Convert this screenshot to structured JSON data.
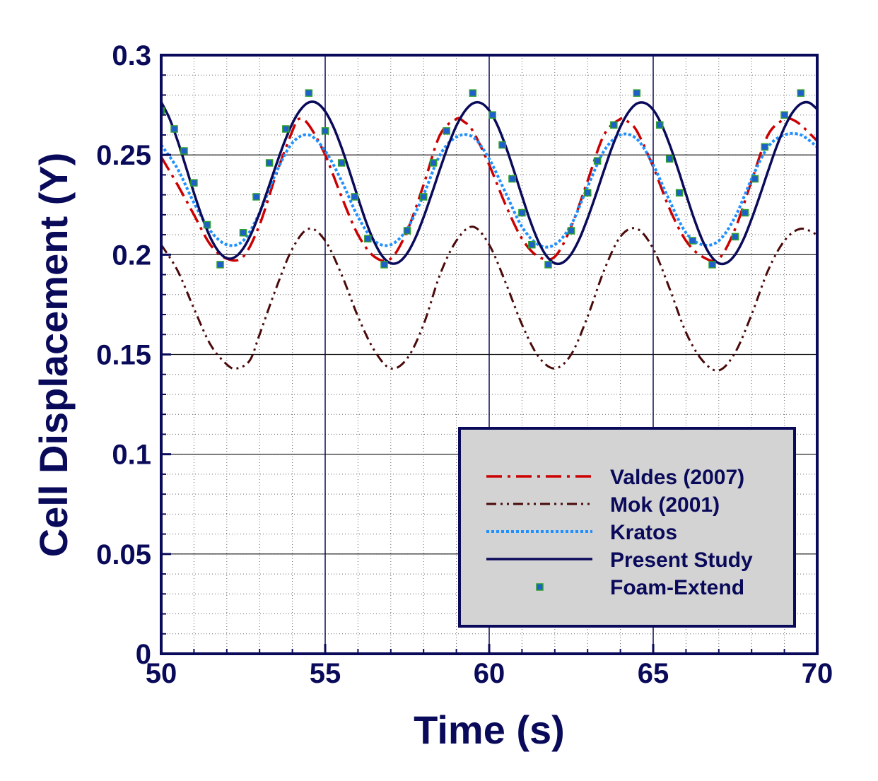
{
  "chart_data": {
    "type": "line",
    "title": "",
    "xlabel": "Time (s)",
    "ylabel": "Cell Displacement (Y)",
    "xlim": [
      50,
      70
    ],
    "ylim": [
      0,
      0.3
    ],
    "x_ticks": [
      50,
      55,
      60,
      65,
      70
    ],
    "x_tick_labels": [
      "50",
      "55",
      "60",
      "65",
      "70"
    ],
    "y_ticks": [
      0,
      0.05,
      0.1,
      0.15,
      0.2,
      0.25,
      0.3
    ],
    "y_tick_labels": [
      "0",
      "0.05",
      "0.1",
      "0.15",
      "0.2",
      "0.25",
      "0.3"
    ],
    "grid": true,
    "minor_grid": true,
    "legend_position": "bottom-right",
    "colors": {
      "axis": "#0a0a5a",
      "legend_bg": "#d3d3d3"
    },
    "series": [
      {
        "name": "Valdes (2007)",
        "style": "dash-dot",
        "color": "#cc0000",
        "x": [
          50,
          50.5,
          51,
          51.5,
          52,
          52.5,
          53,
          53.5,
          54,
          54.2,
          54.5,
          55,
          55.5,
          56,
          56.5,
          57,
          57.5,
          58,
          58.5,
          59,
          59.2,
          59.5,
          60,
          60.5,
          61,
          61.5,
          62,
          62.5,
          63,
          63.5,
          64,
          64.2,
          64.5,
          65,
          65.5,
          66,
          66.5,
          67,
          67.5,
          68,
          68.5,
          69,
          69.2,
          69.5,
          70
        ],
        "y": [
          0.249,
          0.235,
          0.22,
          0.205,
          0.198,
          0.199,
          0.215,
          0.24,
          0.262,
          0.268,
          0.265,
          0.25,
          0.229,
          0.21,
          0.199,
          0.198,
          0.212,
          0.235,
          0.26,
          0.268,
          0.267,
          0.262,
          0.245,
          0.225,
          0.208,
          0.199,
          0.199,
          0.214,
          0.237,
          0.26,
          0.268,
          0.267,
          0.262,
          0.244,
          0.223,
          0.207,
          0.199,
          0.198,
          0.213,
          0.237,
          0.26,
          0.268,
          0.268,
          0.265,
          0.257
        ]
      },
      {
        "name": "Mok (2001)",
        "style": "dash-dot-dot",
        "color": "#4a0a0a",
        "x": [
          50,
          50.5,
          51,
          51.5,
          52,
          52.3,
          52.7,
          53,
          53.5,
          54,
          54.5,
          55,
          55.5,
          56,
          56.5,
          57,
          57.5,
          58,
          58.5,
          59,
          59.5,
          60,
          60.5,
          61,
          61.5,
          62,
          62.5,
          63,
          63.5,
          64,
          64.5,
          65,
          65.5,
          66,
          66.5,
          67,
          67.5,
          68,
          68.5,
          69,
          69.5,
          70
        ],
        "y": [
          0.205,
          0.192,
          0.173,
          0.155,
          0.145,
          0.143,
          0.147,
          0.16,
          0.183,
          0.203,
          0.213,
          0.207,
          0.19,
          0.169,
          0.152,
          0.143,
          0.148,
          0.165,
          0.19,
          0.207,
          0.214,
          0.205,
          0.186,
          0.165,
          0.149,
          0.143,
          0.15,
          0.169,
          0.192,
          0.209,
          0.213,
          0.203,
          0.183,
          0.161,
          0.147,
          0.142,
          0.151,
          0.17,
          0.192,
          0.207,
          0.213,
          0.21
        ]
      },
      {
        "name": "Kratos",
        "style": "dotted",
        "color": "#1e90ff",
        "x": [
          50,
          50.5,
          51,
          51.5,
          52,
          52.5,
          53,
          53.5,
          54,
          54.5,
          55,
          55.5,
          56,
          56.5,
          57,
          57.5,
          58,
          58.5,
          59,
          59.5,
          60,
          60.5,
          61,
          61.5,
          62,
          62.5,
          63,
          63.5,
          64,
          64.5,
          65,
          65.5,
          66,
          66.5,
          67,
          67.5,
          68,
          68.5,
          69,
          69.5,
          70
        ],
        "y": [
          0.255,
          0.243,
          0.226,
          0.212,
          0.205,
          0.207,
          0.221,
          0.241,
          0.256,
          0.26,
          0.252,
          0.237,
          0.219,
          0.207,
          0.205,
          0.213,
          0.23,
          0.25,
          0.259,
          0.259,
          0.248,
          0.231,
          0.214,
          0.205,
          0.205,
          0.215,
          0.234,
          0.252,
          0.26,
          0.258,
          0.245,
          0.227,
          0.211,
          0.205,
          0.207,
          0.219,
          0.238,
          0.254,
          0.26,
          0.26,
          0.254
        ]
      },
      {
        "name": "Present Study",
        "style": "solid",
        "color": "#0a0a5a",
        "x": [
          50,
          50.25,
          50.5,
          50.75,
          51,
          51.25,
          51.5,
          51.75,
          52,
          52.25,
          52.5,
          52.75,
          53,
          53.25,
          53.5,
          53.75,
          54,
          54.25,
          54.5,
          54.75,
          55,
          55.25,
          55.5,
          55.75,
          56,
          56.25,
          56.5,
          56.75,
          57,
          57.25,
          57.5,
          57.75,
          58,
          58.25,
          58.5,
          58.75,
          59,
          59.25,
          59.5,
          59.75,
          60,
          60.25,
          60.5,
          60.75,
          61,
          61.25,
          61.5,
          61.75,
          62,
          62.25,
          62.5,
          62.75,
          63,
          63.25,
          63.5,
          63.75,
          64,
          64.25,
          64.5,
          64.75,
          65,
          65.25,
          65.5,
          65.75,
          66,
          66.25,
          66.5,
          66.75,
          67,
          67.25,
          67.5,
          67.75,
          68,
          68.25,
          68.5,
          68.75,
          69,
          69.25,
          69.5,
          69.75,
          70
        ],
        "y": [
          0.2765,
          0.2684,
          0.2571,
          0.2442,
          0.2309,
          0.2187,
          0.2086,
          0.2016,
          0.1982,
          0.1988,
          0.2031,
          0.2107,
          0.2209,
          0.2326,
          0.2447,
          0.2561,
          0.2658,
          0.2727,
          0.2763,
          0.276,
          0.2718,
          0.2641,
          0.2536,
          0.2413,
          0.2285,
          0.2163,
          0.2062,
          0.1991,
          0.1957,
          0.1963,
          0.2007,
          0.2084,
          0.2188,
          0.2306,
          0.2429,
          0.2546,
          0.2646,
          0.2718,
          0.2758,
          0.276,
          0.2723,
          0.2649,
          0.2545,
          0.2423,
          0.2294,
          0.217,
          0.2066,
          0.1993,
          0.1957,
          0.1961,
          0.2003,
          0.2079,
          0.2182,
          0.2299,
          0.2422,
          0.254,
          0.2641,
          0.2715,
          0.2757,
          0.276,
          0.2726,
          0.2654,
          0.2552,
          0.2432,
          0.2303,
          0.2179,
          0.2072,
          0.1996,
          0.1957,
          0.196,
          0.2001,
          0.2076,
          0.2179,
          0.2295,
          0.2418,
          0.2536,
          0.2637,
          0.2713,
          0.2756,
          0.2762,
          0.2729
        ]
      },
      {
        "name": "Foam-Extend",
        "style": "square-markers",
        "color": "#1e5fcc",
        "marker_border": "#2ca02c",
        "x": [
          50,
          50.4,
          50.7,
          51,
          51.4,
          51.8,
          52.5,
          52.9,
          53.3,
          53.8,
          54.5,
          55,
          55.5,
          55.9,
          56.3,
          56.8,
          57.5,
          58,
          58.3,
          58.7,
          59.5,
          60.1,
          60.4,
          60.7,
          61,
          61.3,
          61.8,
          62.5,
          63,
          63.3,
          63.8,
          64.5,
          65.2,
          65.5,
          65.8,
          66.2,
          66.8,
          67.5,
          67.8,
          68.1,
          68.4,
          69,
          69.5
        ],
        "y": [
          0.272,
          0.263,
          0.252,
          0.236,
          0.215,
          0.195,
          0.211,
          0.229,
          0.246,
          0.263,
          0.281,
          0.262,
          0.246,
          0.229,
          0.208,
          0.195,
          0.212,
          0.229,
          0.246,
          0.262,
          0.281,
          0.27,
          0.255,
          0.238,
          0.221,
          0.205,
          0.195,
          0.212,
          0.231,
          0.247,
          0.265,
          0.281,
          0.265,
          0.248,
          0.231,
          0.207,
          0.195,
          0.209,
          0.221,
          0.238,
          0.254,
          0.27,
          0.281
        ]
      }
    ]
  }
}
